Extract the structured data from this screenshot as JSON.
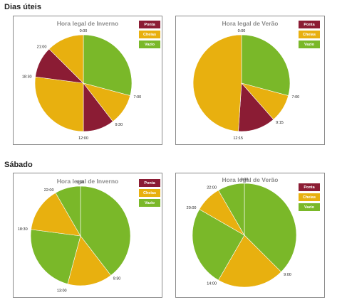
{
  "sections": [
    {
      "title": "Dias úteis"
    },
    {
      "title": "Sábado"
    }
  ],
  "colors": {
    "Ponta": "#8b1c34",
    "Cheias": "#e8b00f",
    "Vazio": "#7ab829"
  },
  "legend": [
    "Ponta",
    "Cheias",
    "Vazio"
  ],
  "chart_data": [
    {
      "type": "pie",
      "title": "Hora legal de Inverno",
      "slices": [
        {
          "start": "0:00",
          "end": "7:00",
          "period": "Vazio"
        },
        {
          "start": "7:00",
          "end": "9:30",
          "period": "Cheias"
        },
        {
          "start": "9:30",
          "end": "12:00",
          "period": "Ponta"
        },
        {
          "start": "12:00",
          "end": "18:30",
          "period": "Cheias"
        },
        {
          "start": "18:30",
          "end": "21:00",
          "period": "Ponta"
        },
        {
          "start": "21:00",
          "end": "0:00",
          "period": "Cheias"
        }
      ],
      "tick_labels": [
        "0:00",
        "7:00",
        "9:30",
        "12:00",
        "18:30",
        "21:00"
      ]
    },
    {
      "type": "pie",
      "title": "Hora legal de Verão",
      "slices": [
        {
          "start": "0:00",
          "end": "7:00",
          "period": "Vazio"
        },
        {
          "start": "7:00",
          "end": "9:15",
          "period": "Cheias"
        },
        {
          "start": "9:15",
          "end": "12:15",
          "period": "Ponta"
        },
        {
          "start": "12:15",
          "end": "0:00",
          "period": "Cheias"
        }
      ],
      "tick_labels": [
        "0:00",
        "7:00",
        "9:15",
        "12:15"
      ]
    },
    {
      "type": "pie",
      "title": "Hora legal de Inverno",
      "slices": [
        {
          "start": "0:00",
          "end": "9:30",
          "period": "Vazio"
        },
        {
          "start": "9:30",
          "end": "13:00",
          "period": "Cheias"
        },
        {
          "start": "13:00",
          "end": "18:30",
          "period": "Vazio"
        },
        {
          "start": "18:30",
          "end": "22:00",
          "period": "Cheias"
        },
        {
          "start": "22:00",
          "end": "0:00",
          "period": "Vazio"
        }
      ],
      "tick_labels": [
        "0:00",
        "9:30",
        "13:00",
        "18:30",
        "22:00"
      ]
    },
    {
      "type": "pie",
      "title": "Hora legal de Verão",
      "slices": [
        {
          "start": "0:00",
          "end": "9:00",
          "period": "Vazio"
        },
        {
          "start": "9:00",
          "end": "14:00",
          "period": "Cheias"
        },
        {
          "start": "14:00",
          "end": "20:00",
          "period": "Vazio"
        },
        {
          "start": "20:00",
          "end": "22:00",
          "period": "Cheias"
        },
        {
          "start": "22:00",
          "end": "0:00",
          "period": "Vazio"
        }
      ],
      "tick_labels": [
        "0:00",
        "9:00",
        "14:00",
        "20:00",
        "22:00"
      ]
    }
  ]
}
